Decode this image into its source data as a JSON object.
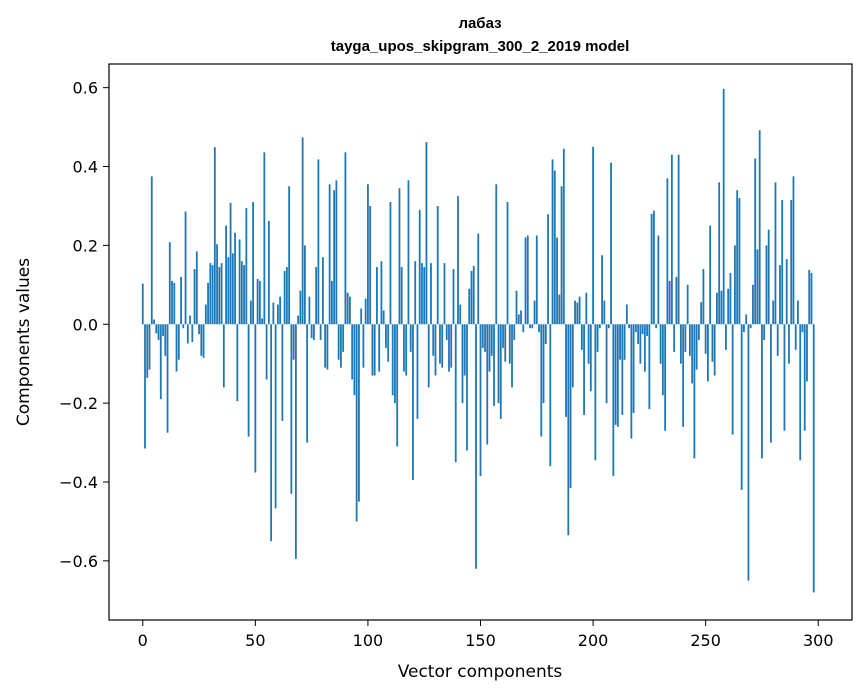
{
  "chart_data": {
    "type": "bar",
    "title_line1": "лабаз",
    "title_line2": "tayga_upos_skipgram_300_2_2019 model",
    "xlabel": "Vector components",
    "ylabel": "Components values",
    "xlim": [
      -15,
      315
    ],
    "ylim": [
      -0.75,
      0.66
    ],
    "x_ticks": [
      0,
      50,
      100,
      150,
      200,
      250,
      300
    ],
    "x_tick_labels": [
      "0",
      "50",
      "100",
      "150",
      "200",
      "250",
      "300"
    ],
    "y_ticks": [
      -0.6,
      -0.4,
      -0.2,
      0.0,
      0.2,
      0.4,
      0.6
    ],
    "y_tick_labels": [
      "−0.6",
      "−0.4",
      "−0.2",
      "0.0",
      "0.2",
      "0.4",
      "0.6"
    ],
    "bar_color": "#1f77b4",
    "values": [
      0.103,
      -0.315,
      -0.136,
      -0.115,
      0.375,
      0.012,
      -0.023,
      -0.04,
      -0.19,
      -0.03,
      -0.08,
      -0.275,
      0.208,
      0.11,
      0.105,
      -0.12,
      -0.09,
      0.12,
      -0.01,
      0.286,
      -0.049,
      0.022,
      -0.045,
      0.14,
      0.185,
      -0.025,
      -0.08,
      -0.085,
      0.05,
      0.105,
      0.155,
      0.15,
      0.449,
      0.203,
      0.145,
      0.155,
      -0.16,
      0.25,
      0.17,
      0.308,
      0.18,
      0.232,
      -0.195,
      0.215,
      0.16,
      0.15,
      0.295,
      -0.285,
      0.06,
      0.31,
      -0.376,
      0.115,
      0.11,
      0.015,
      0.436,
      -0.14,
      0.262,
      -0.55,
      0.055,
      -0.467,
      0.05,
      0.07,
      -0.245,
      0.135,
      0.145,
      0.35,
      -0.43,
      -0.09,
      -0.595,
      0.022,
      0.085,
      0.474,
      0.2,
      -0.3,
      0.07,
      -0.035,
      -0.04,
      0.145,
      0.418,
      -0.04,
      0.17,
      -0.11,
      -0.115,
      0.355,
      0.11,
      0.34,
      0.365,
      -0.09,
      -0.11,
      -0.07,
      0.436,
      0.08,
      0.07,
      -0.14,
      -0.18,
      -0.5,
      -0.45,
      0.04,
      -0.11,
      0.065,
      0.355,
      0.3,
      -0.13,
      -0.13,
      0.145,
      -0.12,
      0.16,
      0.035,
      -0.06,
      -0.095,
      0.31,
      -0.18,
      -0.2,
      -0.31,
      0.345,
      0.145,
      -0.12,
      -0.13,
      0.365,
      -0.07,
      -0.395,
      0.16,
      -0.24,
      0.29,
      0.155,
      0.145,
      0.462,
      -0.16,
      0.155,
      -0.08,
      -0.13,
      0.3,
      -0.1,
      -0.11,
      0.155,
      -0.04,
      -0.12,
      -0.11,
      0.14,
      -0.35,
      0.325,
      0.05,
      -0.2,
      -0.13,
      -0.32,
      0.09,
      0.135,
      0.148,
      -0.62,
      0.23,
      -0.385,
      -0.06,
      -0.07,
      -0.305,
      -0.12,
      -0.08,
      -0.207,
      0.355,
      -0.2,
      -0.24,
      -0.06,
      -0.095,
      0.31,
      -0.1,
      -0.16,
      -0.04,
      0.085,
      0.025,
      0.035,
      -0.02,
      0.22,
      0.225,
      -0.01,
      -0.01,
      0.06,
      0.225,
      -0.02,
      -0.285,
      -0.2,
      -0.05,
      0.279,
      -0.36,
      0.418,
      0.39,
      0.22,
      0.075,
      0.35,
      0.445,
      -0.235,
      -0.535,
      -0.415,
      -0.16,
      0.06,
      0.055,
      0.07,
      -0.065,
      -0.23,
      0.08,
      -0.1,
      -0.17,
      0.45,
      -0.345,
      -0.07,
      -0.01,
      0.175,
      0.06,
      -0.2,
      -0.01,
      0.41,
      -0.385,
      -0.255,
      -0.26,
      -0.09,
      -0.23,
      -0.09,
      0.05,
      -0.01,
      -0.29,
      -0.225,
      -0.02,
      -0.05,
      -0.1,
      -0.025,
      -0.12,
      -0.03,
      -0.215,
      0.28,
      0.288,
      -0.01,
      0.225,
      -0.1,
      -0.18,
      -0.27,
      0.37,
      0.11,
      0.43,
      -0.07,
      0.12,
      0.43,
      -0.1,
      -0.26,
      -0.07,
      0.1,
      -0.08,
      -0.15,
      -0.34,
      -0.115,
      -0.04,
      0.056,
      0.14,
      -0.075,
      -0.145,
      0.25,
      -0.095,
      -0.13,
      0.08,
      0.36,
      0.085,
      0.597,
      -0.065,
      0.09,
      0.13,
      -0.28,
      0.2,
      0.34,
      0.32,
      -0.42,
      -0.02,
      0.025,
      -0.65,
      -0.01,
      0.1,
      0.42,
      0.19,
      0.492,
      -0.34,
      -0.04,
      0.2,
      0.24,
      -0.3,
      0.06,
      0.36,
      -0.08,
      0.15,
      0.315,
      -0.27,
      0.165,
      -0.1,
      0.315,
      0.375,
      -0.065,
      0.06,
      -0.345,
      -0.02,
      -0.27,
      -0.145,
      0.138,
      0.13,
      -0.68
    ]
  }
}
